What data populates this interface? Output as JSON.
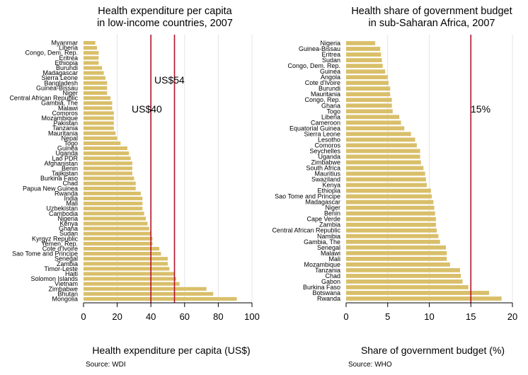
{
  "colors": {
    "bar": "#d9bf6a",
    "refline": "#b2112a",
    "grid": "#e4e4e4",
    "axis": "#000000"
  },
  "chart_data": [
    {
      "type": "bar",
      "orientation": "horizontal",
      "title": [
        "Health expenditure per capita",
        "in low-income countries, 2007"
      ],
      "xlabel": "Health expenditure per capita (US$)",
      "source": "Source: WDI",
      "xlim": [
        0,
        100
      ],
      "xticks": [
        0,
        20,
        40,
        60,
        80,
        100
      ],
      "grid": true,
      "reference_lines": [
        {
          "value": 40,
          "label": "US$40"
        },
        {
          "value": 54,
          "label": "US$54"
        }
      ],
      "categories": [
        "Myanmar",
        "Liberia",
        "Congo, Dem. Rep.",
        "Eritrea",
        "Ethiopia",
        "Burundi",
        "Madagascar",
        "Sierra Leone",
        "Bangladesh",
        "Guinea-Bissau",
        "Niger",
        "Central African Republic",
        "Gambia, The",
        "Malawi",
        "Comoros",
        "Mozambique",
        "Pakistan",
        "Tanzania",
        "Mauritania",
        "Nepal",
        "Togo",
        "Guinea",
        "Uganda",
        "Lao PDR",
        "Afghanistan",
        "Benin",
        "Tajikistan",
        "Burkina Faso",
        "Chad",
        "Papua New Guinea",
        "Rwanda",
        "India",
        "Mali",
        "Uzbekistan",
        "Cambodia",
        "Nigeria",
        "Kenya",
        "Ghana",
        "Sudan",
        "Kyrgyz Republic",
        "Yemen, Rep.",
        "Cote d'Ivoire",
        "Sao Tome and Principe",
        "Senegal",
        "Zambia",
        "Timor-Leste",
        "Haiti",
        "Solomon Islands",
        "Vietnam",
        "Zimbabwe",
        "Bhutan",
        "Mongolia"
      ],
      "values": [
        7,
        8,
        9,
        9,
        9,
        11,
        12,
        13,
        14,
        14,
        14,
        16,
        17,
        17,
        18,
        18,
        18,
        18,
        19,
        20,
        22,
        26,
        27,
        28,
        29,
        29,
        29,
        30,
        31,
        31,
        34,
        35,
        35,
        35,
        36,
        37,
        38,
        39,
        40,
        41,
        41,
        45,
        46,
        50,
        50,
        51,
        54,
        55,
        57,
        73,
        77,
        91
      ]
    },
    {
      "type": "bar",
      "orientation": "horizontal",
      "title": [
        "Health share of government budget",
        "in sub-Saharan Africa, 2007"
      ],
      "xlabel": "Share of government budget (%)",
      "source": "Source: WHO",
      "xlim": [
        0,
        20
      ],
      "xticks": [
        0,
        5,
        10,
        15,
        20
      ],
      "grid": true,
      "reference_lines": [
        {
          "value": 15,
          "label": "15%"
        }
      ],
      "categories": [
        "Nigeria",
        "Guinea-Bissau",
        "Eritrea",
        "Sudan",
        "Congo, Dem. Rep.",
        "Guinea",
        "Angola",
        "Cote d'Ivoire",
        "Burundi",
        "Mauritania",
        "Congo, Rep.",
        "Ghana",
        "Togo",
        "Liberia",
        "Cameroon",
        "Equatorial Guinea",
        "Sierra Leone",
        "Lesotho",
        "Comoros",
        "Seychelles",
        "Uganda",
        "Zimbabwe",
        "South Africa",
        "Mauritius",
        "Swaziland",
        "Kenya",
        "Ethiopia",
        "Sao Tome and Principe",
        "Madagascar",
        "Niger",
        "Benin",
        "Cape Verde",
        "Zambia",
        "Central African Republic",
        "Namibia",
        "Gambia, The",
        "Senegal",
        "Malawi",
        "Mali",
        "Mozambique",
        "Tanzania",
        "Chad",
        "Gabon",
        "Burkina Faso",
        "Botswana",
        "Rwanda"
      ],
      "values": [
        3.5,
        4.1,
        4.2,
        4.3,
        4.4,
        4.7,
        5.0,
        5.1,
        5.3,
        5.3,
        5.5,
        5.5,
        5.6,
        6.4,
        6.6,
        7.0,
        7.8,
        8.3,
        8.5,
        8.9,
        8.9,
        9.0,
        9.3,
        9.5,
        9.6,
        9.7,
        10.2,
        10.3,
        10.5,
        10.6,
        10.7,
        10.8,
        10.8,
        10.9,
        11.1,
        11.3,
        12.0,
        12.1,
        12.1,
        12.5,
        13.7,
        13.8,
        14.0,
        14.7,
        17.2,
        18.7
      ]
    }
  ]
}
